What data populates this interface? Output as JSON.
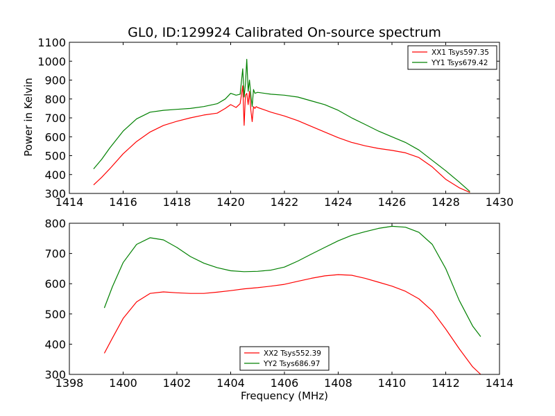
{
  "figure": {
    "title": "GL0, ID:129924 Calibrated On-source spectrum",
    "ylabel": "Power in Kelvin",
    "xlabel": "Frequency (MHz)"
  },
  "chart_data": [
    {
      "type": "line",
      "title": "GL0, ID:129924 Calibrated On-source spectrum",
      "xlabel": "",
      "ylabel": "Power in Kelvin",
      "xlim": [
        1414,
        1430
      ],
      "ylim": [
        300,
        1100
      ],
      "xticks": [
        1414,
        1416,
        1418,
        1420,
        1422,
        1424,
        1426,
        1428,
        1430
      ],
      "yticks": [
        300,
        400,
        500,
        600,
        700,
        800,
        900,
        1000,
        1100
      ],
      "grid": false,
      "legend_position": "top-right",
      "series": [
        {
          "name": "XX1 Tsys597.35",
          "color": "#ff0000",
          "x": [
            1414.9,
            1415.2,
            1415.5,
            1416.0,
            1416.5,
            1417.0,
            1417.5,
            1418.0,
            1418.5,
            1419.0,
            1419.5,
            1419.8,
            1420.0,
            1420.2,
            1420.35,
            1420.45,
            1420.5,
            1420.55,
            1420.6,
            1420.65,
            1420.7,
            1420.75,
            1420.8,
            1420.85,
            1420.9,
            1420.95,
            1421.0,
            1421.5,
            1422.0,
            1422.5,
            1423.0,
            1423.5,
            1424.0,
            1424.5,
            1425.0,
            1425.5,
            1426.0,
            1426.5,
            1427.0,
            1427.5,
            1428.0,
            1428.5,
            1428.9
          ],
          "values": [
            345,
            385,
            430,
            510,
            575,
            625,
            660,
            682,
            700,
            715,
            725,
            750,
            770,
            755,
            775,
            870,
            660,
            820,
            830,
            770,
            840,
            740,
            680,
            760,
            750,
            760,
            755,
            730,
            710,
            685,
            655,
            625,
            595,
            570,
            552,
            538,
            528,
            515,
            490,
            440,
            375,
            330,
            305
          ]
        },
        {
          "name": "YY1 Tsys679.42",
          "color": "#008000",
          "x": [
            1414.9,
            1415.2,
            1415.5,
            1416.0,
            1416.5,
            1417.0,
            1417.5,
            1418.0,
            1418.5,
            1419.0,
            1419.5,
            1419.8,
            1420.0,
            1420.2,
            1420.35,
            1420.45,
            1420.5,
            1420.55,
            1420.6,
            1420.65,
            1420.7,
            1420.75,
            1420.8,
            1420.85,
            1420.9,
            1421.0,
            1421.5,
            1422.0,
            1422.5,
            1423.0,
            1423.5,
            1424.0,
            1424.5,
            1425.0,
            1425.5,
            1426.0,
            1426.5,
            1427.0,
            1427.5,
            1428.0,
            1428.5,
            1428.9
          ],
          "values": [
            430,
            480,
            540,
            630,
            695,
            730,
            740,
            745,
            750,
            760,
            775,
            800,
            830,
            820,
            825,
            960,
            810,
            880,
            1010,
            840,
            900,
            820,
            760,
            850,
            830,
            835,
            825,
            820,
            810,
            790,
            770,
            740,
            700,
            665,
            630,
            600,
            570,
            530,
            475,
            420,
            360,
            310
          ]
        }
      ]
    },
    {
      "type": "line",
      "title": "",
      "xlabel": "Frequency (MHz)",
      "ylabel": "",
      "xlim": [
        1398,
        1414
      ],
      "ylim": [
        300,
        800
      ],
      "xticks": [
        1398,
        1400,
        1402,
        1404,
        1406,
        1408,
        1410,
        1412,
        1414
      ],
      "yticks": [
        300,
        400,
        500,
        600,
        700,
        800
      ],
      "grid": false,
      "legend_position": "bottom-center",
      "series": [
        {
          "name": "XX2 Tsys552.39",
          "color": "#ff0000",
          "x": [
            1399.3,
            1399.6,
            1400.0,
            1400.5,
            1401.0,
            1401.5,
            1402.0,
            1402.5,
            1403.0,
            1403.5,
            1404.0,
            1404.5,
            1405.0,
            1405.5,
            1406.0,
            1406.5,
            1407.0,
            1407.5,
            1408.0,
            1408.5,
            1409.0,
            1409.5,
            1410.0,
            1410.5,
            1411.0,
            1411.5,
            1412.0,
            1412.5,
            1413.0,
            1413.3
          ],
          "values": [
            370,
            420,
            485,
            540,
            568,
            573,
            570,
            568,
            568,
            572,
            577,
            583,
            587,
            592,
            598,
            608,
            618,
            626,
            630,
            628,
            618,
            605,
            592,
            575,
            550,
            510,
            450,
            385,
            325,
            300
          ]
        },
        {
          "name": "YY2 Tsys686.97",
          "color": "#008000",
          "x": [
            1399.3,
            1399.6,
            1400.0,
            1400.5,
            1401.0,
            1401.5,
            1402.0,
            1402.5,
            1403.0,
            1403.5,
            1404.0,
            1404.5,
            1405.0,
            1405.5,
            1406.0,
            1406.5,
            1407.0,
            1407.5,
            1408.0,
            1408.5,
            1409.0,
            1409.5,
            1410.0,
            1410.5,
            1411.0,
            1411.5,
            1412.0,
            1412.5,
            1413.0,
            1413.3
          ],
          "values": [
            520,
            590,
            670,
            730,
            752,
            745,
            720,
            690,
            668,
            653,
            643,
            640,
            641,
            645,
            655,
            675,
            698,
            720,
            742,
            760,
            772,
            783,
            790,
            787,
            770,
            730,
            650,
            545,
            460,
            425
          ]
        }
      ]
    }
  ]
}
